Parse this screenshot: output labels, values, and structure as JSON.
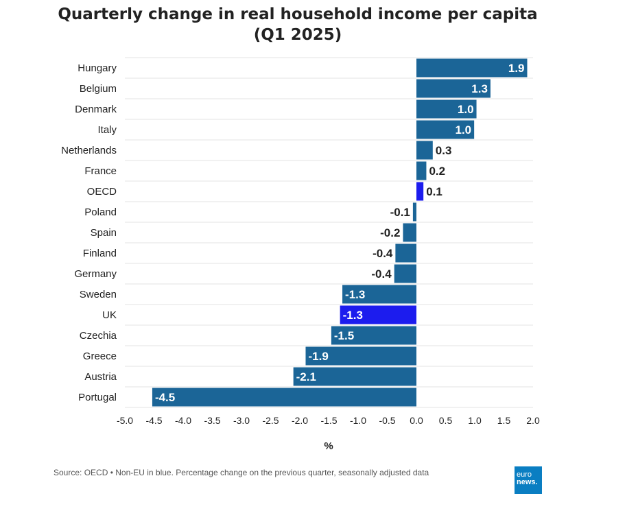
{
  "title": {
    "line1": "Quarterly change in real household income per capita",
    "line2": "(Q1 2025)"
  },
  "source": "Source: OECD • Non-EU in blue. Percentage change on the previous quarter, seasonally adjusted data",
  "logo": {
    "line1": "euro",
    "line2": "news."
  },
  "colors": {
    "eu": "#1b6597",
    "non_eu": "#1c1cee",
    "grid": "#e3e3e3",
    "label_dark": "#222222",
    "label_light": "#ffffff"
  },
  "chart_data": {
    "type": "bar",
    "orientation": "horizontal",
    "categories": [
      "Hungary",
      "Belgium",
      "Denmark",
      "Italy",
      "Netherlands",
      "France",
      "OECD",
      "Poland",
      "Spain",
      "Finland",
      "Germany",
      "Sweden",
      "UK",
      "Czechia",
      "Greece",
      "Austria",
      "Portugal"
    ],
    "values": [
      1.9,
      1.3,
      1.0,
      1.0,
      0.3,
      0.2,
      0.1,
      -0.1,
      -0.2,
      -0.4,
      -0.4,
      -1.3,
      -1.3,
      -1.5,
      -1.9,
      -2.1,
      -4.5
    ],
    "value_labels": [
      "1.9",
      "1.3",
      "1.0",
      "1.0",
      "0.3",
      "0.2",
      "0.1",
      "-0.1",
      "-0.2",
      "-0.4",
      "-0.4",
      "-1.3",
      "-1.3",
      "-1.5",
      "-1.9",
      "-2.1",
      "-4.5"
    ],
    "group": [
      "eu",
      "eu",
      "eu",
      "eu",
      "eu",
      "eu",
      "non_eu",
      "eu",
      "eu",
      "eu",
      "eu",
      "eu",
      "non_eu",
      "eu",
      "eu",
      "eu",
      "eu"
    ],
    "display_values": [
      1.9,
      1.27,
      1.03,
      0.99,
      0.28,
      0.17,
      0.12,
      -0.06,
      -0.23,
      -0.36,
      -0.38,
      -1.27,
      -1.31,
      -1.46,
      -1.9,
      -2.11,
      -4.53
    ],
    "xlim": [
      -5.0,
      2.0
    ],
    "xticks": [
      "-5.0",
      "-4.5",
      "-4.0",
      "-3.5",
      "-3.0",
      "-2.5",
      "-2.0",
      "-1.5",
      "-1.0",
      "-0.5",
      "0.0",
      "0.5",
      "1.0",
      "1.5",
      "2.0"
    ],
    "xlabel": "%",
    "title": "Quarterly change in real household income per capita (Q1 2025)",
    "grid": true
  }
}
